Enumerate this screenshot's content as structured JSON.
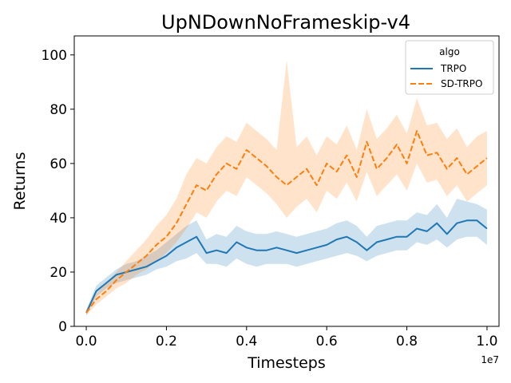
{
  "chart_data": {
    "type": "line",
    "title": "UpNDownNoFrameskip-v4",
    "xlabel": "Timesteps",
    "ylabel": "Returns",
    "x_offset_label": "1e7",
    "xlim": [
      -0.03,
      1.03
    ],
    "ylim": [
      0,
      107
    ],
    "xticks": [
      0.0,
      0.2,
      0.4,
      0.6,
      0.8,
      1.0
    ],
    "xtick_labels": [
      "0.0",
      "0.2",
      "0.4",
      "0.6",
      "0.8",
      "1.0"
    ],
    "yticks": [
      0,
      20,
      40,
      60,
      80,
      100
    ],
    "ytick_labels": [
      "0",
      "20",
      "40",
      "60",
      "80",
      "100"
    ],
    "grid": false,
    "legend": {
      "title": "algo",
      "position": "top-right"
    },
    "x": [
      0.0,
      0.025,
      0.05,
      0.075,
      0.1,
      0.125,
      0.15,
      0.175,
      0.2,
      0.225,
      0.25,
      0.275,
      0.3,
      0.325,
      0.35,
      0.375,
      0.4,
      0.425,
      0.45,
      0.475,
      0.5,
      0.525,
      0.55,
      0.575,
      0.6,
      0.625,
      0.65,
      0.675,
      0.7,
      0.725,
      0.75,
      0.775,
      0.8,
      0.825,
      0.85,
      0.875,
      0.9,
      0.925,
      0.95,
      0.975,
      1.0
    ],
    "series": [
      {
        "name": "TRPO",
        "color": "#1f77b4",
        "dash": "solid",
        "values": [
          5,
          13,
          16,
          19,
          20,
          21,
          22,
          24,
          26,
          29,
          31,
          33,
          27,
          28,
          27,
          31,
          29,
          28,
          28,
          29,
          28,
          27,
          28,
          29,
          30,
          32,
          33,
          31,
          28,
          31,
          32,
          33,
          33,
          36,
          35,
          38,
          34,
          38,
          39,
          39,
          36
        ],
        "lower": [
          4,
          11,
          14,
          16,
          17,
          18,
          19,
          21,
          22,
          24,
          25,
          27,
          23,
          23,
          22,
          25,
          23,
          22,
          23,
          23,
          23,
          22,
          23,
          24,
          25,
          26,
          27,
          26,
          24,
          26,
          27,
          28,
          28,
          31,
          30,
          32,
          29,
          32,
          33,
          33,
          30
        ],
        "upper": [
          6,
          15,
          18,
          21,
          23,
          24,
          26,
          28,
          31,
          34,
          37,
          39,
          32,
          34,
          33,
          37,
          35,
          34,
          34,
          35,
          34,
          33,
          34,
          35,
          36,
          38,
          39,
          37,
          33,
          37,
          38,
          39,
          39,
          42,
          41,
          45,
          40,
          47,
          46,
          45,
          43
        ]
      },
      {
        "name": "SD-TRPO",
        "color": "#ff7f0e",
        "dash": "dashed",
        "values": [
          5,
          10,
          13,
          17,
          20,
          23,
          26,
          30,
          33,
          38,
          45,
          52,
          50,
          56,
          60,
          58,
          65,
          62,
          59,
          55,
          52,
          55,
          58,
          52,
          60,
          57,
          63,
          55,
          68,
          58,
          62,
          67,
          60,
          72,
          63,
          64,
          58,
          62,
          56,
          59,
          62
        ],
        "lower": [
          4,
          8,
          11,
          14,
          16,
          19,
          21,
          24,
          27,
          31,
          36,
          42,
          40,
          46,
          50,
          48,
          55,
          52,
          49,
          45,
          40,
          44,
          47,
          42,
          50,
          47,
          53,
          46,
          57,
          48,
          52,
          56,
          50,
          60,
          53,
          54,
          48,
          52,
          46,
          49,
          52
        ],
        "upper": [
          6,
          12,
          16,
          20,
          24,
          28,
          32,
          37,
          41,
          47,
          56,
          62,
          60,
          66,
          70,
          68,
          75,
          72,
          69,
          65,
          98,
          66,
          70,
          63,
          70,
          67,
          74,
          65,
          80,
          69,
          73,
          78,
          71,
          84,
          74,
          75,
          69,
          73,
          66,
          70,
          72
        ]
      }
    ]
  }
}
